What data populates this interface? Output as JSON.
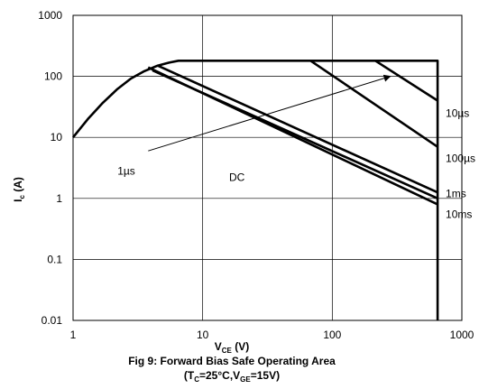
{
  "chart_data": {
    "type": "line",
    "title": "Fig 9: Forward Bias Safe Operating Area",
    "subtitle_parts": [
      "(T",
      "C",
      "=25°C,V",
      "GE",
      "=15V)"
    ],
    "xlabel_parts": [
      "V",
      "CE",
      " (V)"
    ],
    "ylabel_parts": [
      "I",
      "c",
      " (A)"
    ],
    "x_scale": "log",
    "y_scale": "log",
    "xlim": [
      1,
      1000
    ],
    "ylim": [
      0.01,
      1000
    ],
    "x_ticks": [
      1,
      10,
      100,
      1000
    ],
    "x_tick_labels": [
      "1",
      "10",
      "100",
      "1000"
    ],
    "y_ticks": [
      0.01,
      0.1,
      1,
      10,
      100,
      1000
    ],
    "y_tick_labels": [
      "0.01",
      "0.1",
      "1",
      "10",
      "100",
      "1000"
    ],
    "grid": true,
    "series": [
      {
        "name": "1µs",
        "x": [
          1,
          1.3,
          1.7,
          2.2,
          2.8,
          3.5,
          4.5,
          5.5,
          6.5,
          650,
          650
        ],
        "y": [
          10,
          20,
          37,
          62,
          92,
          120,
          150,
          168,
          180,
          180,
          0.01
        ]
      },
      {
        "name": "10µs",
        "x": [
          215,
          650
        ],
        "y": [
          180,
          40
        ]
      },
      {
        "name": "100µs",
        "x": [
          68,
          650
        ],
        "y": [
          180,
          7
        ]
      },
      {
        "name": "1ms",
        "x": [
          4.5,
          650
        ],
        "y": [
          150,
          1.25
        ]
      },
      {
        "name": "10ms",
        "x": [
          4.1,
          650
        ],
        "y": [
          125,
          1.0
        ]
      },
      {
        "name": "DC",
        "x": [
          3.8,
          650
        ],
        "y": [
          140,
          0.8
        ]
      }
    ],
    "annotations": [
      {
        "text": "1µs",
        "x": 2.2,
        "y": 2.8
      },
      {
        "text": "DC",
        "x": 16,
        "y": 2.2
      },
      {
        "text": "10µs",
        "x": 750,
        "y": 25
      },
      {
        "text": "100µs",
        "x": 750,
        "y": 4.5
      },
      {
        "text": "1ms",
        "x": 750,
        "y": 1.2
      },
      {
        "text": "10ms",
        "x": 750,
        "y": 0.55
      }
    ],
    "arrow": {
      "from": [
        3.8,
        6
      ],
      "to": [
        280,
        100
      ]
    }
  }
}
